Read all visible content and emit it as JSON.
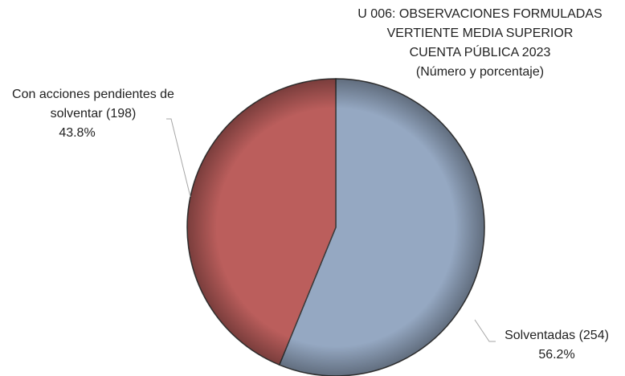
{
  "chart_data": {
    "type": "pie",
    "title": [
      "U 006: OBSERVACIONES FORMULADAS",
      "VERTIENTE MEDIA SUPERIOR",
      "CUENTA PÚBLICA 2023"
    ],
    "subtitle": "(Número y porcentaje)",
    "categories": [
      "Solventadas (254)",
      "Con acciones pendientes de solventar (198)"
    ],
    "values": [
      56.2,
      43.8
    ],
    "value_labels": [
      "56.2%",
      "43.8%"
    ],
    "colors": [
      "#95a8c2",
      "#bb5e5c"
    ]
  }
}
